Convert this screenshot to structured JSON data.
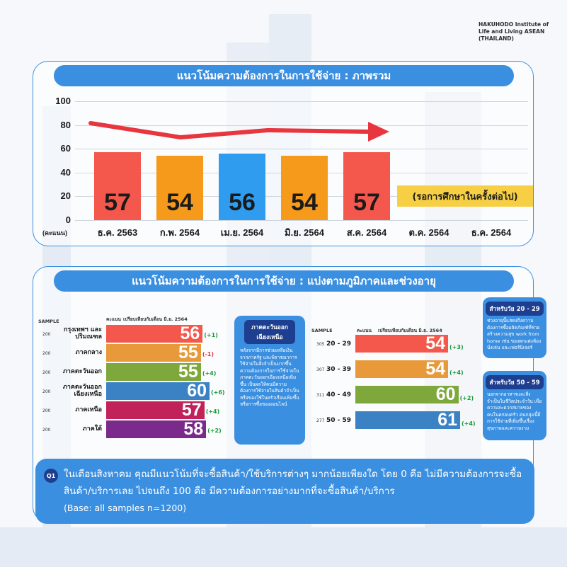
{
  "brand": {
    "line1": "HAKUHODO Institute of",
    "line2": "Life and Living ASEAN",
    "line3": "(THAILAND)"
  },
  "colors": {
    "accent_blue": "#3b8fe0",
    "navy": "#1e3f8f",
    "trend_red": "#e8363f",
    "pending_yellow": "#f6cf45"
  },
  "chart1": {
    "title": "แนวโน้มความต้องการในการใช้จ่าย : ภาพรวม",
    "y_unit": "(คะแนน)",
    "pending_note": "(รอการศึกษาในครั้งต่อไป)"
  },
  "chart2": {
    "title": "แนวโน้มความต้องการในการใช้จ่าย : แบ่งตามภูมิภาคและช่วงอายุ",
    "left": {
      "sample_header": "SAMPLE",
      "score_header": "คะแนน",
      "compare_header": "เปรียบเทียบกับเดือน มิ.ย. 2564"
    },
    "right": {
      "sample_header": "SAMPLE",
      "score_header": "คะแนน",
      "compare_header": "เปรียบเทียบกับเดือน มิ.ย. 2564"
    },
    "callout_region": {
      "title": "ภาคตะวันออก เฉียงเหนือ",
      "body": "หลังจากมีการช่วยเหลือเงินจากภาครัฐ และพิจารณาการใช้จ่ายในสิ่งจำเป็นมากขึ้น ความต้องการในการใช้จ่ายในภาคตะวันออกเฉียงเหนือเพิ่มขึ้น เป็นผลให้คนมีความต้องการใช้จ่ายในสินค้าจำเป็น หรือของใช้ในครัวเรือนเพิ่มขึ้น หรือการซื้อของออนไลน์"
    },
    "callout_age1": {
      "title": "สำหรับวัย 20 - 29",
      "body": "ช่วงอายุนี้แสดงถึงความต้องการซื้อผลิตภัณฑ์ที่ช่วยสร้างความสุข work from home เช่น ของตกแต่งห้องนั่งเล่น และเฟอร์นิเจอร์"
    },
    "callout_age2": {
      "title": "สำหรับวัย 50 - 59",
      "body": "นอกจากอาหารและสิ่งจำเป็นในชีวิตประจำวัน เพื่อความสะดวกสบายของคนในครอบครัว คนกลุ่มนี้มีการใช้จ่ายที่เพิ่มขึ้นเรื่องสุขภาพและความงาม"
    }
  },
  "q1": {
    "badge": "Q1",
    "text": "ในเดือนสิงหาคม คุณมีแนวโน้มที่จะซื้อสินค้า/ใช้บริการต่างๆ มากน้อยเพียงใด โดย 0 คือ ไม่มีความต้องการจะซื้อสินค้า/บริการเลย ไปจนถึง 100 คือ มีความต้องการอย่างมากที่จะซื้อสินค้า/บริการ",
    "base": "(Base: all samples n=1200)"
  },
  "chart_data": [
    {
      "type": "bar",
      "title": "แนวโน้มความต้องการในการใช้จ่าย : ภาพรวม",
      "ylabel": "(คะแนน)",
      "ylim": [
        0,
        100
      ],
      "yticks": [
        "100",
        "80",
        "60",
        "40",
        "20",
        "0"
      ],
      "categories": [
        "ธ.ค. 2563",
        "ก.พ. 2564",
        "เม.ย. 2564",
        "มิ.ย. 2564",
        "ส.ค. 2564",
        "ต.ค. 2564",
        "ธ.ค. 2564"
      ],
      "values": [
        57,
        54,
        56,
        54,
        57,
        null,
        null
      ],
      "colors": [
        "#f4584c",
        "#f59a1a",
        "#2f9cf0",
        "#f59a1a",
        "#f4584c",
        null,
        null
      ],
      "grid": true
    },
    {
      "type": "bar",
      "orientation": "horizontal",
      "title": "ภูมิภาค",
      "categories": [
        "กรุงเทพฯ และปริมณฑล",
        "ภาคกลาง",
        "ภาคตะวันออก",
        "ภาคตะวันออก เฉียงเหนือ",
        "ภาคเหนือ",
        "ภาคใต้"
      ],
      "samples": [
        "200",
        "200",
        "200",
        "200",
        "200",
        "200"
      ],
      "values": [
        56,
        55,
        55,
        60,
        57,
        58
      ],
      "changes": [
        "(+1)",
        "(-1)",
        "(+4)",
        "(+6)",
        "(+4)",
        "(+2)"
      ],
      "change_colors": [
        "#1a9a3a",
        "#e8363f",
        "#1a9a3a",
        "#1a9a3a",
        "#1a9a3a",
        "#1a9a3a"
      ],
      "colors": [
        "#f4584c",
        "#e89a3a",
        "#7fa83c",
        "#3b82c4",
        "#c1225a",
        "#7b2a8c"
      ],
      "xlim": [
        0,
        60
      ]
    },
    {
      "type": "bar",
      "orientation": "horizontal",
      "title": "ช่วงอายุ",
      "categories": [
        "20 - 29",
        "30 - 39",
        "40 - 49",
        "50 - 59"
      ],
      "samples": [
        "305",
        "307",
        "311",
        "277"
      ],
      "values": [
        54,
        54,
        60,
        61
      ],
      "changes": [
        "(+3)",
        "(+4)",
        "(+2)",
        "(+4)"
      ],
      "change_colors": [
        "#1a9a3a",
        "#1a9a3a",
        "#1a9a3a",
        "#1a9a3a"
      ],
      "colors": [
        "#f4584c",
        "#e89a3a",
        "#7fa83c",
        "#3b82c4"
      ],
      "xlim": [
        0,
        61
      ]
    }
  ]
}
